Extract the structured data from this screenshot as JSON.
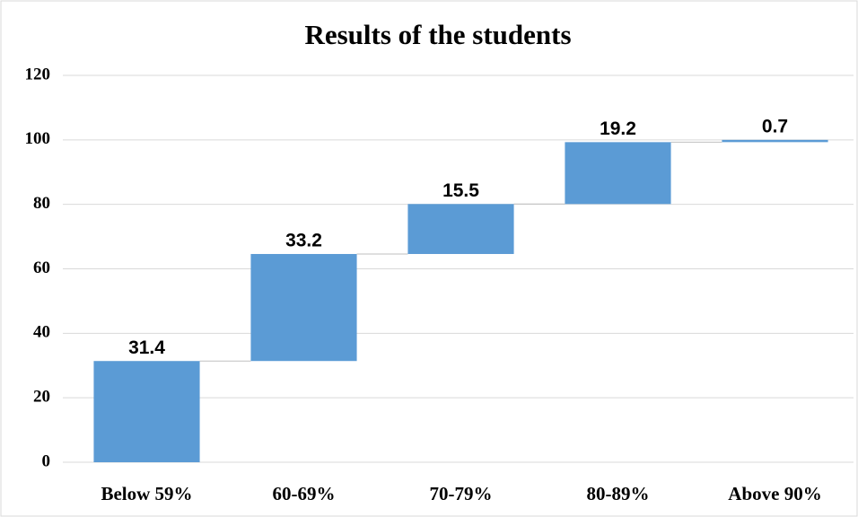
{
  "chart_data": {
    "type": "waterfall",
    "title": "Results of the students",
    "categories": [
      "Below 59%",
      "60-69%",
      "70-79%",
      "80-89%",
      "Above 90%"
    ],
    "values": [
      31.4,
      33.2,
      15.5,
      19.2,
      0.7
    ],
    "color": "#5b9bd5",
    "ylim": [
      0,
      120
    ],
    "yticks": [
      0,
      20,
      40,
      60,
      80,
      100,
      120
    ],
    "grid": true
  }
}
